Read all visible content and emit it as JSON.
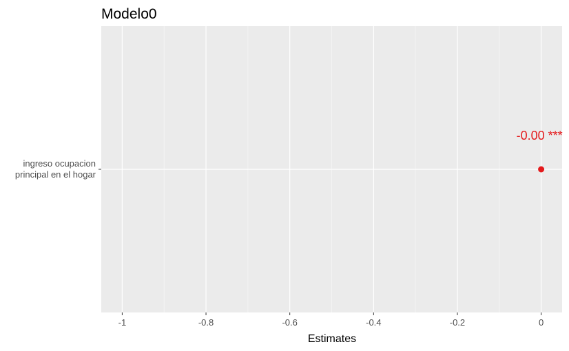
{
  "chart_data": {
    "type": "scatter",
    "title": "Modelo0",
    "xlabel": "Estimates",
    "ylabel": "",
    "xlim": [
      -1.05,
      0.05
    ],
    "x_ticks": [
      -1,
      -0.8,
      -0.6,
      -0.4,
      -0.2,
      0
    ],
    "x_tick_labels": [
      "-1",
      "-0.8",
      "-0.6",
      "-0.4",
      "-0.2",
      "0"
    ],
    "categories": [
      "ingreso ocupacion principal en el hogar"
    ],
    "category_label_lines": [
      [
        "ingreso ocupacion",
        "principal en el hogar"
      ]
    ],
    "points": [
      {
        "category": "ingreso ocupacion principal en el hogar",
        "estimate": 0.0,
        "label": "-0.00 ***"
      }
    ],
    "grid": true,
    "colors": {
      "panel": "#ebebeb",
      "grid_major": "#ffffff",
      "grid_minor": "#f5f5f5",
      "point": "#e41a1c"
    }
  }
}
